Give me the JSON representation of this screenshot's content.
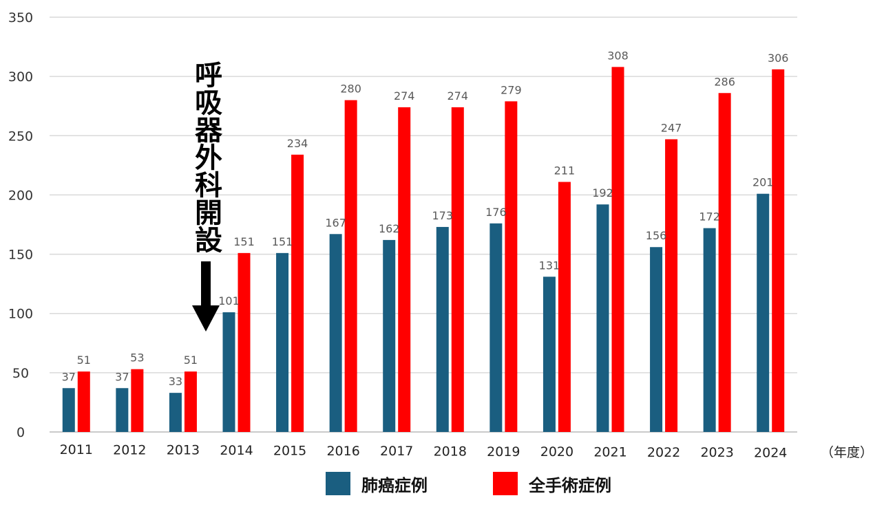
{
  "chart_data": {
    "type": "bar",
    "categories": [
      "2011",
      "2012",
      "2013",
      "2014",
      "2015",
      "2016",
      "2017",
      "2018",
      "2019",
      "2020",
      "2021",
      "2022",
      "2023",
      "2024"
    ],
    "series": [
      {
        "name": "肺癌症例",
        "color": "#1a5e80",
        "values": [
          37,
          37,
          33,
          101,
          151,
          167,
          162,
          173,
          176,
          131,
          192,
          156,
          172,
          201
        ]
      },
      {
        "name": "全手術症例",
        "color": "#ff0000",
        "values": [
          51,
          53,
          51,
          151,
          234,
          280,
          274,
          274,
          279,
          211,
          308,
          247,
          286,
          306
        ]
      }
    ],
    "ylim": [
      0,
      350
    ],
    "yticks": [
      0,
      50,
      100,
      150,
      200,
      250,
      300,
      350
    ],
    "grid": true,
    "legend_position": "bottom",
    "x_unit_label": "（年度）",
    "annotation": {
      "text": "呼吸器外科開設",
      "arrow": "down",
      "between": [
        "2013",
        "2014"
      ]
    }
  }
}
